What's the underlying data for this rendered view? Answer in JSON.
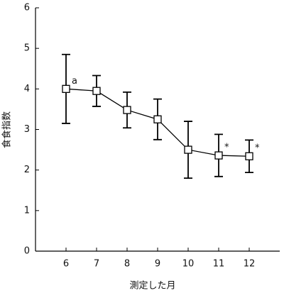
{
  "chart_data": {
    "type": "line",
    "x": [
      6,
      7,
      8,
      9,
      10,
      11,
      12
    ],
    "values": [
      4.0,
      3.95,
      3.48,
      3.25,
      2.5,
      2.36,
      2.34
    ],
    "errors": [
      0.85,
      0.38,
      0.44,
      0.5,
      0.7,
      0.52,
      0.4
    ],
    "point_labels": [
      "a",
      null,
      null,
      null,
      null,
      "*",
      "*"
    ],
    "xlabel": "測定した月",
    "ylabel": "食食指数",
    "xlim": [
      5,
      13
    ],
    "xticks": [
      6,
      7,
      8,
      9,
      10,
      11,
      12
    ],
    "ylim": [
      0,
      6
    ],
    "yticks": [
      0,
      1,
      2,
      3,
      4,
      5,
      6
    ],
    "color": "#000000",
    "grid": false
  }
}
